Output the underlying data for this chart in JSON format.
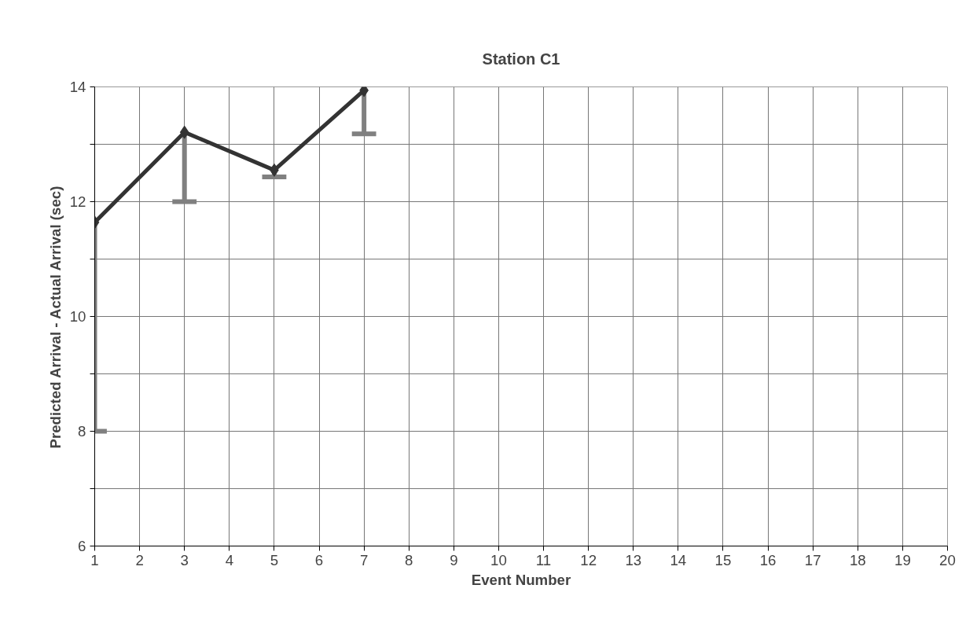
{
  "chart_data": {
    "type": "line",
    "title": "Station C1",
    "xlabel": "Event Number",
    "ylabel": "Predicted Arrival - Actual Arrival (sec)",
    "x": [
      1,
      3,
      5,
      7
    ],
    "series": [
      {
        "color": "#333333",
        "values": [
          11.64,
          13.21,
          12.55,
          13.94
        ],
        "errors": [
          [
            8.0,
            11.64
          ],
          [
            12.0,
            13.21
          ],
          [
            12.43,
            12.55
          ],
          [
            13.18,
            13.94
          ]
        ]
      }
    ],
    "xlim": [
      1,
      20
    ],
    "xticks": [
      1,
      2,
      3,
      4,
      5,
      6,
      7,
      8,
      9,
      10,
      11,
      12,
      13,
      14,
      15,
      16,
      17,
      18,
      19,
      20
    ],
    "ylim": [
      6,
      14
    ],
    "yticks": [
      6,
      {
        "value": 7,
        "label": null
      },
      8,
      {
        "value": 9,
        "label": null
      },
      10,
      {
        "value": 11,
        "label": null
      },
      12,
      {
        "value": 13,
        "label": null
      },
      14
    ],
    "grid": true,
    "marker": "diamond",
    "line_style": "solid"
  }
}
